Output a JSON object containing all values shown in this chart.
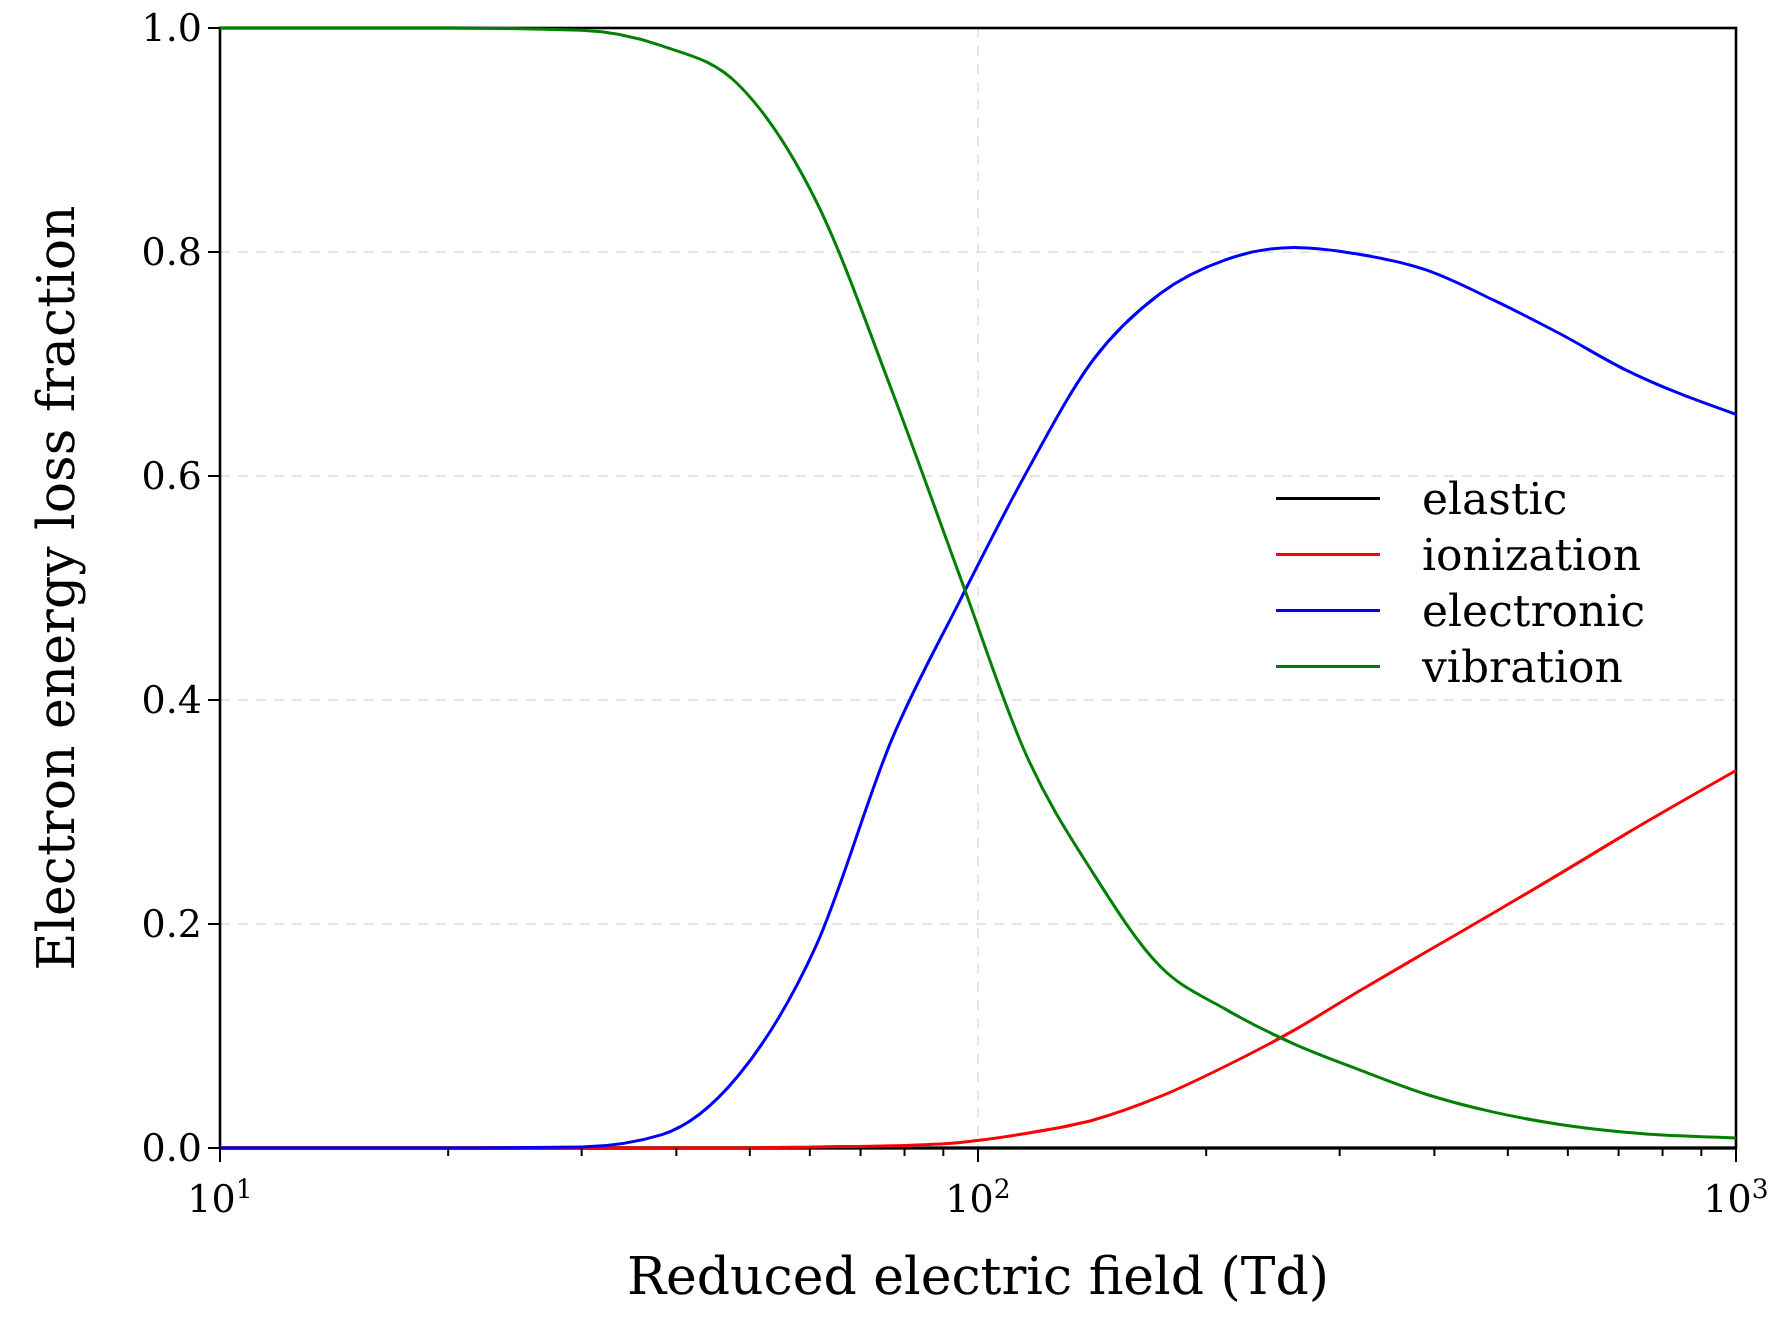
{
  "chart_data": {
    "type": "line",
    "xlabel": "Reduced electric field (Td)",
    "ylabel": "Electron energy loss fraction",
    "log": "x",
    "grid": true,
    "legend": "right",
    "line_style": "solid",
    "marker": "none",
    "x": [
      10,
      20,
      30,
      38.3,
      48.2,
      61.1,
      77.1,
      94.7,
      115.6,
      142,
      174,
      212,
      261,
      318,
      390,
      479,
      586,
      714,
      1000
    ],
    "xlim": [
      10,
      1000
    ],
    "ylim": [
      0,
      1
    ],
    "xticks": [
      {
        "value": 10,
        "label": "10$^{1}$"
      },
      {
        "value": 100,
        "label": "10$^{2}$"
      },
      {
        "value": 1000,
        "label": "10$^{3}$"
      }
    ],
    "yticks": [
      {
        "value": 0,
        "label": "0.0"
      },
      {
        "value": 0.2,
        "label": "0.2"
      },
      {
        "value": 0.4,
        "label": "0.4"
      },
      {
        "value": 0.6,
        "label": "0.6"
      },
      {
        "value": 0.8,
        "label": "0.8"
      },
      {
        "value": 1,
        "label": "1.0"
      }
    ],
    "series": [
      {
        "name": "elastic",
        "color": "#000000",
        "values": [
          0,
          0,
          0,
          0,
          0,
          0,
          0,
          0,
          0,
          0,
          0,
          0,
          0,
          0,
          0,
          0,
          0,
          0,
          0
        ]
      },
      {
        "name": "ionization",
        "color": "#ff0000",
        "values": [
          0,
          0,
          0,
          0,
          0,
          0.001,
          0.002,
          0.005,
          0.013,
          0.025,
          0.046,
          0.073,
          0.105,
          0.14,
          0.175,
          0.21,
          0.245,
          0.28,
          0.337
        ]
      },
      {
        "name": "electronic",
        "color": "#0000ff",
        "values": [
          0,
          0,
          0.001,
          0.012,
          0.064,
          0.18,
          0.366,
          0.489,
          0.602,
          0.704,
          0.763,
          0.793,
          0.804,
          0.798,
          0.784,
          0.757,
          0.727,
          0.695,
          0.655
        ]
      },
      {
        "name": "vibration",
        "color": "#008000",
        "values": [
          1,
          1,
          0.998,
          0.984,
          0.95,
          0.846,
          0.675,
          0.51,
          0.352,
          0.245,
          0.162,
          0.124,
          0.093,
          0.07,
          0.048,
          0.032,
          0.021,
          0.014,
          0.009
        ]
      }
    ]
  }
}
